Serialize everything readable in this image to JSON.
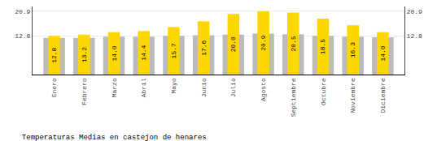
{
  "chart_data": {
    "type": "bar",
    "title": "Temperaturas Medias en castejon de henares",
    "categories": [
      "Enero",
      "Febrero",
      "Marzo",
      "Abril",
      "Mayo",
      "Junio",
      "Julio",
      "Agosto",
      "Septiembre",
      "Octubre",
      "Noviembre",
      "Diciembre"
    ],
    "series": [
      {
        "color": "#BBBBBB",
        "values": [
          12.1,
          12.1,
          12.5,
          12.5,
          12.8,
          13.0,
          13.2,
          13.5,
          13.3,
          12.8,
          12.5,
          12.3
        ]
      },
      {
        "color": "#FFD700",
        "values": [
          12.8,
          13.2,
          14.0,
          14.4,
          15.7,
          17.6,
          20.0,
          20.9,
          20.5,
          18.5,
          16.3,
          14.0
        ],
        "value_labels": [
          "12.8",
          "13.2",
          "14.0",
          "14.4",
          "15.7",
          "17.6",
          "20.0",
          "20.9",
          "20.5",
          "18.5",
          "16.3",
          "14.0"
        ],
        "data_labels": true
      }
    ],
    "ylim": [
      0,
      22.5
    ],
    "yticks": [
      12.8,
      20.9
    ],
    "y2lim": [
      0,
      22.5
    ],
    "y2ticks": [
      12.8,
      20.9
    ],
    "grid": true
  }
}
